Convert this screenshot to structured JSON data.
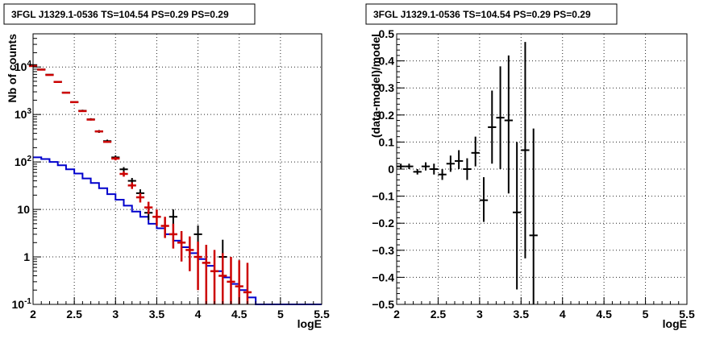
{
  "chart_data": [
    {
      "type": "scatter",
      "title": "3FGL J1329.1-0536 TS=104.54 PS=0.29 PS=0.29",
      "xlabel": "logE",
      "ylabel": "Nb of counts",
      "y_scale": "log",
      "xlim": [
        2,
        5.5
      ],
      "ylim": [
        0.1,
        50000
      ],
      "grid": true,
      "x_ticks": [
        "2",
        "2.5",
        "3",
        "3.5",
        "4",
        "4.5",
        "5",
        "5.5"
      ],
      "y_ticks": [
        {
          "value": 0.1,
          "base": "10",
          "exp": "-1"
        },
        {
          "value": 1,
          "label": "1"
        },
        {
          "value": 10,
          "label": "10"
        },
        {
          "value": 100,
          "base": "10",
          "exp": "2"
        },
        {
          "value": 1000,
          "base": "10",
          "exp": "3"
        },
        {
          "value": 10000,
          "base": "10",
          "exp": "4"
        }
      ],
      "colors": {
        "data": "#000000",
        "model_total": "#cc0000",
        "model_component": "#0000cc"
      },
      "series": [
        {
          "kind": "data_points",
          "color": "#000000",
          "points": [
            {
              "x": 2.0,
              "x0": 1.95,
              "x1": 2.05,
              "y": 11000,
              "lo": 10800,
              "hi": 11200
            },
            {
              "x": 2.1,
              "x0": 2.05,
              "x1": 2.15,
              "y": 8900,
              "lo": 8750,
              "hi": 9050
            },
            {
              "x": 2.2,
              "x0": 2.15,
              "x1": 2.25,
              "y": 6900,
              "lo": 6760,
              "hi": 7040
            },
            {
              "x": 2.3,
              "x0": 2.25,
              "x1": 2.35,
              "y": 4900,
              "lo": 4780,
              "hi": 5020
            },
            {
              "x": 2.4,
              "x0": 2.35,
              "x1": 2.45,
              "y": 2900,
              "lo": 2810,
              "hi": 2990
            },
            {
              "x": 2.5,
              "x0": 2.45,
              "x1": 2.55,
              "y": 1830,
              "lo": 1760,
              "hi": 1900
            },
            {
              "x": 2.6,
              "x0": 2.55,
              "x1": 2.65,
              "y": 1200,
              "lo": 1140,
              "hi": 1260
            },
            {
              "x": 2.7,
              "x0": 2.65,
              "x1": 2.75,
              "y": 790,
              "lo": 745,
              "hi": 835
            },
            {
              "x": 2.8,
              "x0": 2.75,
              "x1": 2.85,
              "y": 440,
              "lo": 410,
              "hi": 470
            },
            {
              "x": 2.9,
              "x0": 2.85,
              "x1": 2.95,
              "y": 275,
              "lo": 255,
              "hi": 295
            },
            {
              "x": 3.0,
              "x0": 2.95,
              "x1": 3.05,
              "y": 125,
              "lo": 113,
              "hi": 137
            },
            {
              "x": 3.1,
              "x0": 3.05,
              "x1": 3.15,
              "y": 70,
              "lo": 62,
              "hi": 78
            },
            {
              "x": 3.2,
              "x0": 3.15,
              "x1": 3.25,
              "y": 40,
              "lo": 34,
              "hi": 46
            },
            {
              "x": 3.3,
              "x0": 3.25,
              "x1": 3.35,
              "y": 22,
              "lo": 17.5,
              "hi": 26.5
            },
            {
              "x": 3.4,
              "x0": 3.35,
              "x1": 3.45,
              "y": 8.5,
              "lo": 6,
              "hi": 11.5
            },
            {
              "x": 3.5,
              "x0": 3.45,
              "x1": 3.55,
              "y": 7,
              "lo": 4.5,
              "hi": 9.5
            },
            {
              "x": 3.7,
              "x0": 3.65,
              "x1": 3.75,
              "y": 7,
              "lo": 4.4,
              "hi": 10
            },
            {
              "x": 4.0,
              "x0": 3.95,
              "x1": 4.05,
              "y": 3,
              "lo": 1.4,
              "hi": 4.6
            },
            {
              "x": 4.3,
              "x0": 4.25,
              "x1": 4.35,
              "y": 1,
              "lo": 0.3,
              "hi": 2.3
            }
          ]
        },
        {
          "kind": "model_points",
          "color": "#cc0000",
          "points": [
            {
              "x": 2.0,
              "x0": 1.95,
              "x1": 2.05,
              "y": 10500,
              "lo": 10500,
              "hi": 10500
            },
            {
              "x": 2.1,
              "x0": 2.05,
              "x1": 2.15,
              "y": 8800,
              "lo": 8800,
              "hi": 8800
            },
            {
              "x": 2.2,
              "x0": 2.15,
              "x1": 2.25,
              "y": 6800,
              "lo": 6800,
              "hi": 6800
            },
            {
              "x": 2.3,
              "x0": 2.25,
              "x1": 2.35,
              "y": 4850,
              "lo": 4850,
              "hi": 4850
            },
            {
              "x": 2.4,
              "x0": 2.35,
              "x1": 2.45,
              "y": 2870,
              "lo": 2870,
              "hi": 2870
            },
            {
              "x": 2.5,
              "x0": 2.45,
              "x1": 2.55,
              "y": 1820,
              "lo": 1820,
              "hi": 1820
            },
            {
              "x": 2.6,
              "x0": 2.55,
              "x1": 2.65,
              "y": 1180,
              "lo": 1180,
              "hi": 1180
            },
            {
              "x": 2.7,
              "x0": 2.65,
              "x1": 2.75,
              "y": 780,
              "lo": 780,
              "hi": 780
            },
            {
              "x": 2.8,
              "x0": 2.75,
              "x1": 2.85,
              "y": 440,
              "lo": 440,
              "hi": 440
            },
            {
              "x": 2.9,
              "x0": 2.85,
              "x1": 2.95,
              "y": 265,
              "lo": 265,
              "hi": 265
            },
            {
              "x": 3.0,
              "x0": 2.95,
              "x1": 3.05,
              "y": 118,
              "lo": 108,
              "hi": 128
            },
            {
              "x": 3.1,
              "x0": 3.05,
              "x1": 3.15,
              "y": 56,
              "lo": 49,
              "hi": 63
            },
            {
              "x": 3.2,
              "x0": 3.15,
              "x1": 3.25,
              "y": 32,
              "lo": 27,
              "hi": 37
            },
            {
              "x": 3.3,
              "x0": 3.25,
              "x1": 3.35,
              "y": 18,
              "lo": 14,
              "hi": 22
            },
            {
              "x": 3.4,
              "x0": 3.35,
              "x1": 3.45,
              "y": 11,
              "lo": 8,
              "hi": 14.5
            },
            {
              "x": 3.5,
              "x0": 3.45,
              "x1": 3.55,
              "y": 7,
              "lo": 4.5,
              "hi": 10
            },
            {
              "x": 3.6,
              "x0": 3.55,
              "x1": 3.65,
              "y": 4.5,
              "lo": 2.5,
              "hi": 7
            },
            {
              "x": 3.7,
              "x0": 3.65,
              "x1": 3.75,
              "y": 3,
              "lo": 1.5,
              "hi": 5
            },
            {
              "x": 3.8,
              "x0": 3.75,
              "x1": 3.85,
              "y": 2,
              "lo": 0.8,
              "hi": 3.5
            },
            {
              "x": 3.9,
              "x0": 3.85,
              "x1": 3.95,
              "y": 1.4,
              "lo": 0.5,
              "hi": 2.7
            },
            {
              "x": 4.0,
              "x0": 3.95,
              "x1": 4.05,
              "y": 1,
              "lo": 0.2,
              "hi": 2.1
            },
            {
              "x": 4.1,
              "x0": 4.05,
              "x1": 4.15,
              "y": 0.75,
              "lo": 0.1,
              "hi": 1.8
            },
            {
              "x": 4.2,
              "x0": 4.15,
              "x1": 4.25,
              "y": 0.5,
              "lo": 0.1,
              "hi": 1.4
            },
            {
              "x": 4.3,
              "x0": 4.25,
              "x1": 4.35,
              "y": 0.4,
              "lo": 0.1,
              "hi": 1.2
            },
            {
              "x": 4.4,
              "x0": 4.35,
              "x1": 4.45,
              "y": 0.3,
              "lo": 0.1,
              "hi": 1.0
            },
            {
              "x": 4.5,
              "x0": 4.45,
              "x1": 4.55,
              "y": 0.24,
              "lo": 0.1,
              "hi": 0.85
            },
            {
              "x": 4.6,
              "x0": 4.55,
              "x1": 4.65,
              "y": 0.18,
              "lo": 0.1,
              "hi": 0.75
            }
          ]
        },
        {
          "kind": "step_histogram",
          "color": "#0000cc",
          "edges": [
            2.0,
            2.1,
            2.2,
            2.3,
            2.4,
            2.5,
            2.6,
            2.7,
            2.8,
            2.9,
            3.0,
            3.1,
            3.2,
            3.3,
            3.4,
            3.5,
            3.6,
            3.7,
            3.8,
            3.9,
            4.0,
            4.1,
            4.2,
            4.3,
            4.4,
            4.5,
            4.6,
            4.7,
            5.5
          ],
          "values": [
            125,
            115,
            100,
            85,
            70,
            57,
            45,
            36,
            28,
            21,
            16,
            12,
            9,
            7,
            5,
            4,
            3,
            2.2,
            1.6,
            1.2,
            0.9,
            0.65,
            0.5,
            0.37,
            0.27,
            0.2,
            0.14,
            0.1
          ]
        }
      ]
    },
    {
      "type": "scatter",
      "title": "3FGL J1329.1-0536 TS=104.54 PS=0.29 PS=0.29",
      "xlabel": "logE",
      "ylabel": "(data-model)/model",
      "xlim": [
        2,
        5.5
      ],
      "ylim": [
        -0.5,
        0.5
      ],
      "grid": true,
      "x_ticks": [
        "2",
        "2.5",
        "3",
        "3.5",
        "4",
        "4.5",
        "5",
        "5.5"
      ],
      "y_ticks": [
        "-0.5",
        "-0.4",
        "-0.3",
        "-0.2",
        "-0.1",
        "0",
        "0.1",
        "0.2",
        "0.3",
        "0.4",
        "0.5"
      ],
      "series": [
        {
          "kind": "residuals",
          "color": "#000000",
          "points": [
            {
              "x": 2.05,
              "x0": 2.0,
              "x1": 2.1,
              "y": 0.01,
              "lo": 0.0,
              "hi": 0.02
            },
            {
              "x": 2.15,
              "x0": 2.1,
              "x1": 2.2,
              "y": 0.01,
              "lo": 0.0,
              "hi": 0.02
            },
            {
              "x": 2.25,
              "x0": 2.2,
              "x1": 2.3,
              "y": -0.01,
              "lo": -0.02,
              "hi": 0.0
            },
            {
              "x": 2.35,
              "x0": 2.3,
              "x1": 2.4,
              "y": 0.01,
              "lo": -0.005,
              "hi": 0.025
            },
            {
              "x": 2.45,
              "x0": 2.4,
              "x1": 2.5,
              "y": 0.0,
              "lo": -0.02,
              "hi": 0.02
            },
            {
              "x": 2.55,
              "x0": 2.5,
              "x1": 2.6,
              "y": -0.02,
              "lo": -0.04,
              "hi": 0.0
            },
            {
              "x": 2.65,
              "x0": 2.6,
              "x1": 2.7,
              "y": 0.02,
              "lo": -0.01,
              "hi": 0.05
            },
            {
              "x": 2.75,
              "x0": 2.7,
              "x1": 2.8,
              "y": 0.03,
              "lo": 0.0,
              "hi": 0.07
            },
            {
              "x": 2.85,
              "x0": 2.8,
              "x1": 2.9,
              "y": 0.0,
              "lo": -0.04,
              "hi": 0.04
            },
            {
              "x": 2.95,
              "x0": 2.9,
              "x1": 3.0,
              "y": 0.06,
              "lo": 0.01,
              "hi": 0.12
            },
            {
              "x": 3.05,
              "x0": 3.0,
              "x1": 3.1,
              "y": -0.115,
              "lo": -0.195,
              "hi": -0.03
            },
            {
              "x": 3.15,
              "x0": 3.1,
              "x1": 3.2,
              "y": 0.155,
              "lo": 0.02,
              "hi": 0.29
            },
            {
              "x": 3.25,
              "x0": 3.2,
              "x1": 3.3,
              "y": 0.19,
              "lo": 0.0,
              "hi": 0.38
            },
            {
              "x": 3.35,
              "x0": 3.3,
              "x1": 3.4,
              "y": 0.18,
              "lo": -0.09,
              "hi": 0.42
            },
            {
              "x": 3.45,
              "x0": 3.4,
              "x1": 3.5,
              "y": -0.16,
              "lo": -0.445,
              "hi": 0.1
            },
            {
              "x": 3.55,
              "x0": 3.5,
              "x1": 3.6,
              "y": 0.07,
              "lo": -0.33,
              "hi": 0.47
            },
            {
              "x": 3.65,
              "x0": 3.6,
              "x1": 3.7,
              "y": -0.245,
              "lo": -0.5,
              "hi": 0.15
            }
          ]
        }
      ]
    }
  ]
}
